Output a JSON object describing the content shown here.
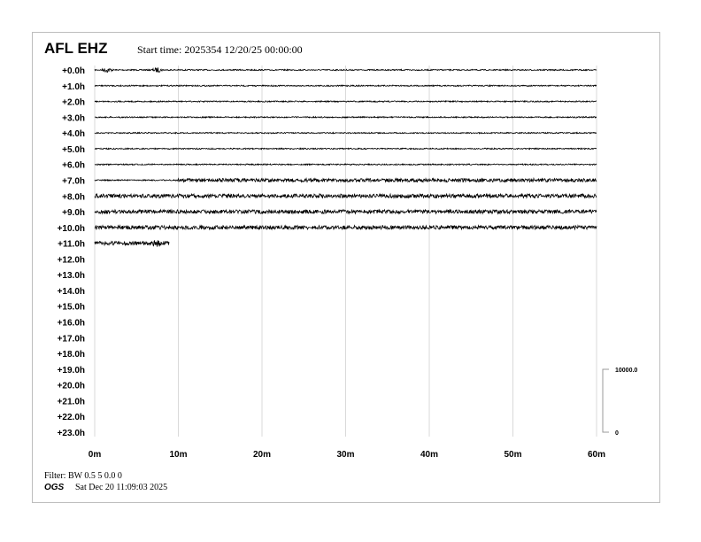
{
  "header": {
    "station": "AFL EHZ",
    "start_time": "Start time: 2025354 12/20/25 00:00:00"
  },
  "footer": {
    "filter": "Filter: BW 0.5 5 0.0 0",
    "agency": "OGS",
    "timestamp": "Sat Dec 20 11:09:03 2025"
  },
  "chart_data": {
    "type": "line",
    "subtype": "helicorder",
    "title": "AFL EHZ",
    "row_labels": [
      "+0.0h",
      "+1.0h",
      "+2.0h",
      "+3.0h",
      "+4.0h",
      "+5.0h",
      "+6.0h",
      "+7.0h",
      "+8.0h",
      "+9.0h",
      "+10.0h",
      "+11.0h",
      "+12.0h",
      "+13.0h",
      "+14.0h",
      "+15.0h",
      "+16.0h",
      "+17.0h",
      "+18.0h",
      "+19.0h",
      "+20.0h",
      "+21.0h",
      "+22.0h",
      "+23.0h"
    ],
    "x_ticks": [
      "0m",
      "10m",
      "20m",
      "30m",
      "40m",
      "50m",
      "60m"
    ],
    "xlim": [
      0,
      60
    ],
    "grid": true,
    "scale_bar": {
      "top_label": "10000.0",
      "bottom_label": "0"
    },
    "traces": [
      {
        "row": 0,
        "end_min": 60,
        "level": "low",
        "events_min": [
          1.5,
          7.5
        ]
      },
      {
        "row": 1,
        "end_min": 60,
        "level": "low"
      },
      {
        "row": 2,
        "end_min": 60,
        "level": "low"
      },
      {
        "row": 3,
        "end_min": 60,
        "level": "low"
      },
      {
        "row": 4,
        "end_min": 60,
        "level": "low"
      },
      {
        "row": 5,
        "end_min": 60,
        "level": "low"
      },
      {
        "row": 6,
        "end_min": 60,
        "level": "low"
      },
      {
        "row": 7,
        "end_min": 60,
        "level": "low",
        "high_from_min": 10
      },
      {
        "row": 8,
        "end_min": 60,
        "level": "high"
      },
      {
        "row": 9,
        "end_min": 60,
        "level": "high"
      },
      {
        "row": 10,
        "end_min": 60,
        "level": "high"
      },
      {
        "row": 11,
        "end_min": 8.9,
        "level": "high",
        "events_min": [
          7.5
        ]
      }
    ],
    "colors": {
      "trace": "#000000",
      "grid": "#d9d9d9"
    }
  }
}
